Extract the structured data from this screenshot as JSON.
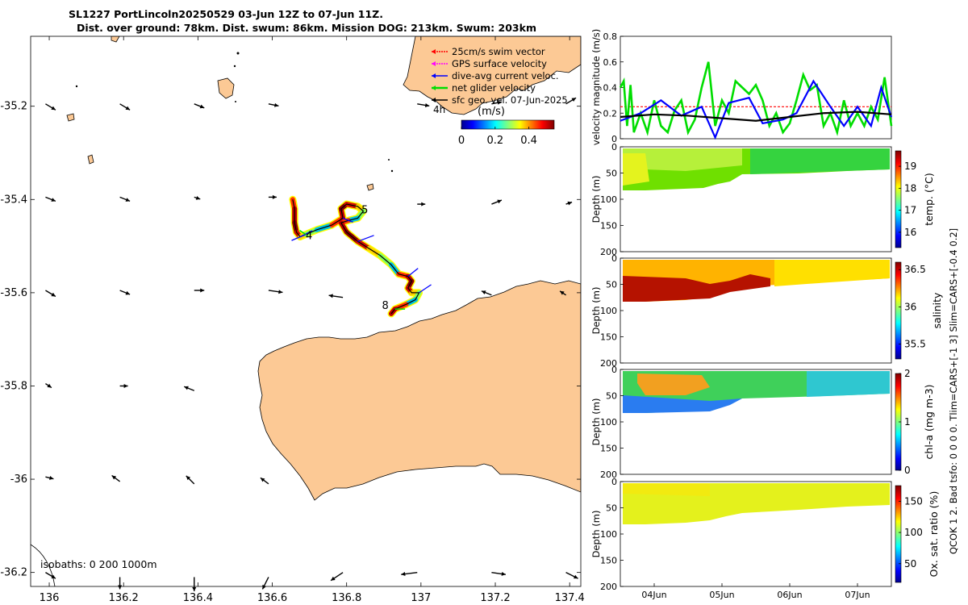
{
  "title": {
    "line1": "SL1227 PortLincoln20250529 03-Jun 12Z to 07-Jun 11Z.",
    "line2": "Dist. over ground: 78km. Dist. swum: 86km. Mission DOG: 213km. Swum: 203km"
  },
  "map": {
    "x_ticks": [
      "136",
      "136.2",
      "136.4",
      "136.6",
      "136.8",
      "137",
      "137.2",
      "137.4"
    ],
    "x_tick_values": [
      136,
      136.2,
      136.4,
      136.6,
      136.8,
      137,
      137.2,
      137.4
    ],
    "y_ticks": [
      "-35.2",
      "-35.4",
      "-35.6",
      "-35.8",
      "-36",
      "-36.2"
    ],
    "y_tick_values": [
      -35.2,
      -35.4,
      -35.6,
      -35.8,
      -36,
      -36.2
    ],
    "xlim": [
      135.95,
      137.43
    ],
    "ylim": [
      -36.23,
      -35.05
    ],
    "isobaths_label": "isobaths: 0   200  1000m",
    "legend": [
      {
        "label": "25cm/s swim vector",
        "color": "#ff0000"
      },
      {
        "label": "GPS surface velocity",
        "color": "#ff00ff"
      },
      {
        "label": "dive-avg current veloc.",
        "color": "#0000ff"
      },
      {
        "label": "net glider velocity",
        "color": "#00dd00"
      },
      {
        "label": "sfc geo. vel. 07-Jun-2025",
        "color": "#000000"
      }
    ],
    "colorbar": {
      "label": "(m/s)",
      "interval_label": "4h",
      "ticks": [
        "0",
        "0.2",
        "0.4"
      ],
      "tick_values": [
        0,
        0.2,
        0.4
      ],
      "range": [
        0,
        0.55
      ]
    },
    "day_labels": [
      {
        "text": "4",
        "lon": 136.69,
        "lat": -35.485
      },
      {
        "text": "5",
        "lon": 136.84,
        "lat": -35.43
      },
      {
        "text": "8",
        "lon": 136.895,
        "lat": -35.635
      }
    ],
    "track": [
      [
        136.655,
        -35.4
      ],
      [
        136.66,
        -35.42
      ],
      [
        136.66,
        -35.45
      ],
      [
        136.665,
        -35.47
      ],
      [
        136.675,
        -35.48
      ],
      [
        136.69,
        -35.475
      ],
      [
        136.72,
        -35.465
      ],
      [
        136.76,
        -35.455
      ],
      [
        136.79,
        -35.44
      ],
      [
        136.785,
        -35.42
      ],
      [
        136.8,
        -35.41
      ],
      [
        136.83,
        -35.415
      ],
      [
        136.845,
        -35.425
      ],
      [
        136.83,
        -35.44
      ],
      [
        136.805,
        -35.445
      ],
      [
        136.785,
        -35.45
      ],
      [
        136.8,
        -35.47
      ],
      [
        136.83,
        -35.49
      ],
      [
        136.86,
        -35.505
      ],
      [
        136.89,
        -35.52
      ],
      [
        136.92,
        -35.54
      ],
      [
        136.94,
        -35.56
      ],
      [
        136.965,
        -35.565
      ],
      [
        136.975,
        -35.575
      ],
      [
        136.965,
        -35.59
      ],
      [
        136.975,
        -35.6
      ],
      [
        136.995,
        -35.6
      ],
      [
        136.985,
        -35.615
      ],
      [
        136.96,
        -35.625
      ],
      [
        136.93,
        -35.635
      ],
      [
        136.92,
        -35.645
      ]
    ],
    "sfc_vectors": [
      {
        "lon": 135.99,
        "lat": -35.195,
        "u": 0.05,
        "v": -0.03
      },
      {
        "lon": 136.19,
        "lat": -35.195,
        "u": 0.05,
        "v": -0.03
      },
      {
        "lon": 136.39,
        "lat": -35.195,
        "u": 0.05,
        "v": -0.02
      },
      {
        "lon": 136.59,
        "lat": -35.195,
        "u": 0.05,
        "v": -0.01
      },
      {
        "lon": 136.99,
        "lat": -35.195,
        "u": 0.06,
        "v": -0.01
      },
      {
        "lon": 137.19,
        "lat": -35.195,
        "u": 0.05,
        "v": 0.01
      },
      {
        "lon": 137.39,
        "lat": -35.195,
        "u": 0.05,
        "v": 0.03
      },
      {
        "lon": 135.99,
        "lat": -35.395,
        "u": 0.05,
        "v": -0.02
      },
      {
        "lon": 136.19,
        "lat": -35.395,
        "u": 0.05,
        "v": -0.02
      },
      {
        "lon": 136.39,
        "lat": -35.395,
        "u": 0.03,
        "v": -0.01
      },
      {
        "lon": 136.59,
        "lat": -35.395,
        "u": 0.04,
        "v": 0.0
      },
      {
        "lon": 136.99,
        "lat": -35.41,
        "u": 0.04,
        "v": 0.0
      },
      {
        "lon": 137.19,
        "lat": -35.41,
        "u": 0.05,
        "v": 0.02
      },
      {
        "lon": 137.39,
        "lat": -35.41,
        "u": 0.03,
        "v": 0.01
      },
      {
        "lon": 135.99,
        "lat": -35.595,
        "u": 0.05,
        "v": -0.03
      },
      {
        "lon": 136.19,
        "lat": -35.595,
        "u": 0.05,
        "v": -0.02
      },
      {
        "lon": 136.39,
        "lat": -35.595,
        "u": 0.05,
        "v": 0.0
      },
      {
        "lon": 136.59,
        "lat": -35.595,
        "u": 0.07,
        "v": -0.01
      },
      {
        "lon": 136.79,
        "lat": -35.61,
        "u": -0.07,
        "v": 0.01
      },
      {
        "lon": 137.19,
        "lat": -35.605,
        "u": -0.05,
        "v": 0.02
      },
      {
        "lon": 137.39,
        "lat": -35.605,
        "u": -0.03,
        "v": 0.02
      },
      {
        "lon": 135.99,
        "lat": -35.795,
        "u": 0.03,
        "v": -0.02
      },
      {
        "lon": 136.19,
        "lat": -35.8,
        "u": 0.04,
        "v": 0.0
      },
      {
        "lon": 136.39,
        "lat": -35.81,
        "u": -0.05,
        "v": 0.02
      },
      {
        "lon": 135.99,
        "lat": -35.995,
        "u": 0.04,
        "v": -0.01
      },
      {
        "lon": 136.19,
        "lat": -36.005,
        "u": -0.04,
        "v": 0.03
      },
      {
        "lon": 136.39,
        "lat": -36.01,
        "u": -0.04,
        "v": 0.04
      },
      {
        "lon": 136.59,
        "lat": -36.01,
        "u": -0.04,
        "v": 0.03
      },
      {
        "lon": 135.99,
        "lat": -36.2,
        "u": 0.05,
        "v": -0.03
      },
      {
        "lon": 136.19,
        "lat": -36.21,
        "u": 0.0,
        "v": -0.06
      },
      {
        "lon": 136.39,
        "lat": -36.21,
        "u": 0.0,
        "v": -0.07
      },
      {
        "lon": 136.59,
        "lat": -36.21,
        "u": -0.03,
        "v": -0.06
      },
      {
        "lon": 136.79,
        "lat": -36.2,
        "u": -0.06,
        "v": -0.04
      },
      {
        "lon": 136.99,
        "lat": -36.2,
        "u": -0.08,
        "v": -0.01
      },
      {
        "lon": 137.19,
        "lat": -36.2,
        "u": 0.07,
        "v": -0.01
      },
      {
        "lon": 137.39,
        "lat": -36.2,
        "u": 0.06,
        "v": -0.03
      }
    ]
  },
  "chart_data": [
    {
      "type": "line",
      "title": "",
      "ylabel": "velocity magnitude (m/s)",
      "xlabel": "",
      "ylim": [
        0,
        0.8
      ],
      "xlim": [
        0,
        4
      ],
      "yticks": [
        "0",
        "0.2",
        "0.4",
        "0.6",
        "0.8"
      ],
      "ytick_values": [
        0,
        0.2,
        0.4,
        0.6,
        0.8
      ],
      "series": [
        {
          "name": "25cm/s swim vector",
          "color": "#ff0000",
          "x": [
            0,
            4
          ],
          "values": [
            0.25,
            0.25
          ]
        },
        {
          "name": "net glider velocity",
          "color": "#00dd00",
          "x": [
            0.0,
            0.05,
            0.1,
            0.15,
            0.2,
            0.3,
            0.4,
            0.5,
            0.6,
            0.7,
            0.8,
            0.9,
            1.0,
            1.1,
            1.2,
            1.3,
            1.4,
            1.5,
            1.6,
            1.7,
            1.8,
            1.9,
            2.0,
            2.1,
            2.2,
            2.3,
            2.4,
            2.5,
            2.6,
            2.7,
            2.8,
            2.9,
            3.0,
            3.1,
            3.2,
            3.3,
            3.4,
            3.5,
            3.6,
            3.7,
            3.8,
            3.9,
            4.0
          ],
          "values": [
            0.4,
            0.45,
            0.1,
            0.42,
            0.05,
            0.2,
            0.05,
            0.3,
            0.1,
            0.05,
            0.22,
            0.3,
            0.05,
            0.15,
            0.4,
            0.6,
            0.1,
            0.3,
            0.2,
            0.45,
            0.4,
            0.35,
            0.42,
            0.3,
            0.1,
            0.2,
            0.05,
            0.12,
            0.3,
            0.5,
            0.38,
            0.42,
            0.1,
            0.2,
            0.05,
            0.3,
            0.1,
            0.2,
            0.1,
            0.25,
            0.15,
            0.48,
            0.1
          ]
        },
        {
          "name": "dive-avg current veloc.",
          "color": "#0000ff",
          "x": [
            0.0,
            0.3,
            0.6,
            0.9,
            1.2,
            1.4,
            1.6,
            1.9,
            2.1,
            2.4,
            2.6,
            2.85,
            3.1,
            3.3,
            3.5,
            3.7,
            3.85,
            4.0
          ],
          "values": [
            0.14,
            0.2,
            0.3,
            0.18,
            0.25,
            0.01,
            0.28,
            0.32,
            0.12,
            0.15,
            0.2,
            0.45,
            0.25,
            0.1,
            0.25,
            0.1,
            0.4,
            0.17
          ]
        },
        {
          "name": "sfc geo. vel.",
          "color": "#000000",
          "x": [
            0,
            0.5,
            1,
            1.5,
            2,
            2.5,
            3,
            3.5,
            4
          ],
          "values": [
            0.17,
            0.19,
            0.18,
            0.16,
            0.14,
            0.17,
            0.2,
            0.21,
            0.19
          ]
        }
      ]
    },
    {
      "type": "heatmap",
      "ylabel": "Depth (m)",
      "colorbar_label": "temp. (°C)",
      "ylim": [
        0,
        200
      ],
      "yticks": [
        "0",
        "50",
        "100",
        "150",
        "200"
      ],
      "ytick_values": [
        0,
        50,
        100,
        150,
        200
      ],
      "cticks": [
        "16",
        "17",
        "18",
        "19"
      ],
      "ctick_values": [
        16,
        17,
        18,
        19
      ],
      "crange": [
        15.3,
        19.7
      ]
    },
    {
      "type": "heatmap",
      "ylabel": "Depth (m)",
      "colorbar_label": "salinity",
      "ylim": [
        0,
        200
      ],
      "yticks": [
        "0",
        "50",
        "100",
        "150",
        "200"
      ],
      "ytick_values": [
        0,
        50,
        100,
        150,
        200
      ],
      "cticks": [
        "35.5",
        "36",
        "36.5"
      ],
      "ctick_values": [
        35.5,
        36,
        36.5
      ],
      "crange": [
        35.3,
        36.6
      ]
    },
    {
      "type": "heatmap",
      "ylabel": "Depth (m)",
      "colorbar_label": "chl-a (mg m-3)",
      "ylim": [
        0,
        200
      ],
      "yticks": [
        "0",
        "50",
        "100",
        "150",
        "200"
      ],
      "ytick_values": [
        0,
        50,
        100,
        150,
        200
      ],
      "cticks": [
        "0",
        "1",
        "2"
      ],
      "ctick_values": [
        0,
        1,
        2
      ],
      "crange": [
        0,
        2
      ]
    },
    {
      "type": "heatmap",
      "ylabel": "Depth (m)",
      "colorbar_label": "Ox. sat. ratio (%)",
      "ylim": [
        0,
        200
      ],
      "yticks": [
        "0",
        "50",
        "100",
        "150",
        "200"
      ],
      "ytick_values": [
        0,
        50,
        100,
        150,
        200
      ],
      "cticks": [
        "50",
        "100",
        "150"
      ],
      "ctick_values": [
        50,
        100,
        150
      ],
      "crange": [
        20,
        175
      ],
      "xticks": [
        "04Jun",
        "05Jun",
        "06Jun",
        "07Jun"
      ],
      "xtick_values": [
        0.5,
        1.5,
        2.5,
        3.5
      ]
    }
  ],
  "side_note1": "QCOK 1  2. Bad tsfo: 0  0  0  0. Tlim=CARS+[-1 3] Slim=CARS+[-0.4 0.2]"
}
